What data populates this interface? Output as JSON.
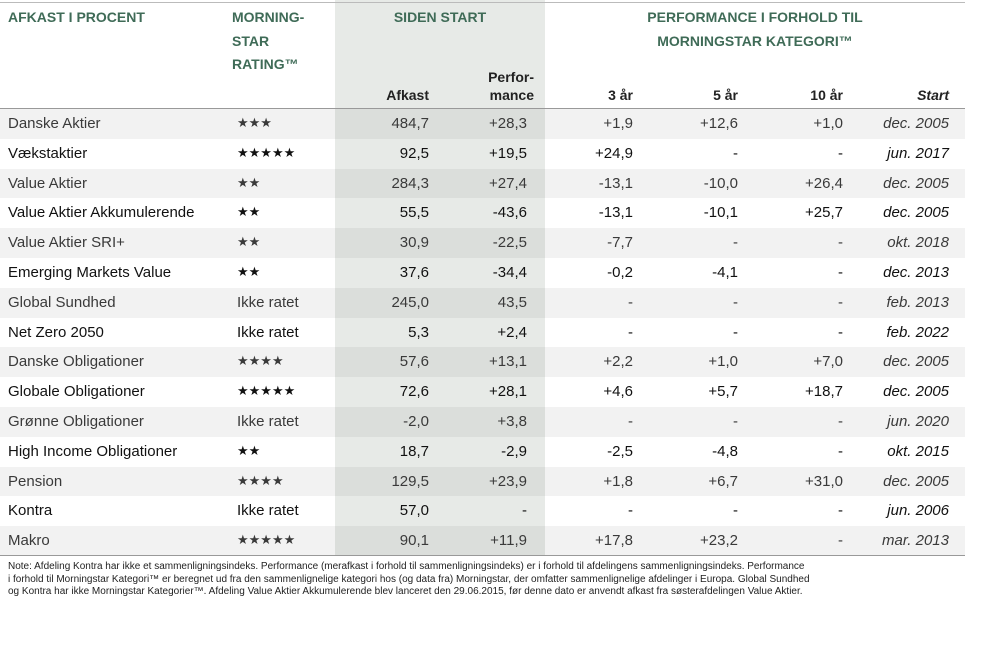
{
  "header": {
    "name": "AFKAST I PROCENT",
    "rating": [
      "MORNING-",
      "STAR",
      "RATING™"
    ],
    "since_start": "SIDEN START",
    "performance_group": [
      "PERFORMANCE I FORHOLD TIL",
      "MORNINGSTAR KATEGORI™"
    ],
    "afkast": "Afkast",
    "performance": [
      "Perfor-",
      "mance"
    ],
    "y3": "3 år",
    "y5": "5 år",
    "y10": "10 år",
    "start": "Start"
  },
  "table": {
    "rows": [
      [
        "Danske Aktier",
        "★★★",
        "484,7",
        "+28,3",
        "+1,9",
        "+12,6",
        "+1,0",
        "dec. 2005"
      ],
      [
        "Vækstaktier",
        "★★★★★",
        "92,5",
        "+19,5",
        "+24,9",
        "-",
        "-",
        "jun. 2017"
      ],
      [
        "Value Aktier",
        "★★",
        "284,3",
        "+27,4",
        "-13,1",
        "-10,0",
        "+26,4",
        "dec. 2005"
      ],
      [
        "Value Aktier Akkumulerende",
        "★★",
        "55,5",
        "-43,6",
        "-13,1",
        "-10,1",
        "+25,7",
        "dec. 2005"
      ],
      [
        "Value Aktier SRI+",
        "★★",
        "30,9",
        "-22,5",
        "-7,7",
        "-",
        "-",
        "okt. 2018"
      ],
      [
        "Emerging Markets Value",
        "★★",
        "37,6",
        "-34,4",
        "-0,2",
        "-4,1",
        "-",
        "dec. 2013"
      ],
      [
        "Global Sundhed",
        "Ikke ratet",
        "245,0",
        "43,5",
        "-",
        "-",
        "-",
        "feb. 2013"
      ],
      [
        "Net Zero 2050",
        "Ikke ratet",
        "5,3",
        "+2,4",
        "-",
        "-",
        "-",
        "feb. 2022"
      ],
      [
        "Danske Obligationer",
        "★★★★",
        "57,6",
        "+13,1",
        "+2,2",
        "+1,0",
        "+7,0",
        "dec. 2005"
      ],
      [
        "Globale Obligationer",
        "★★★★★",
        "72,6",
        "+28,1",
        "+4,6",
        "+5,7",
        "+18,7",
        "dec. 2005"
      ],
      [
        "Grønne Obligationer",
        "Ikke ratet",
        "-2,0",
        "+3,8",
        "-",
        "-",
        "-",
        "jun. 2020"
      ],
      [
        "High Income Obligationer",
        "★★",
        "18,7",
        "-2,9",
        "-2,5",
        "-4,8",
        "-",
        "okt. 2015"
      ],
      [
        "Pension",
        "★★★★",
        "129,5",
        "+23,9",
        "+1,8",
        "+6,7",
        "+31,0",
        "dec. 2005"
      ],
      [
        "Kontra",
        "Ikke ratet",
        "57,0",
        "-",
        "-",
        "-",
        "-",
        "jun. 2006"
      ],
      [
        "Makro",
        "★★★★★",
        "90,1",
        "+11,9",
        "+17,8",
        "+23,2",
        "-",
        "mar. 2013"
      ]
    ]
  },
  "note": [
    "Note: Afdeling Kontra har ikke et sammenligningsindeks. Performance (merafkast i forhold til sammenligningsindeks) er i forhold til afdelingens sammenligningsindeks. Performance",
    "i forhold til Morningstar Kategori™ er beregnet ud fra den sammenlignelige kategori hos (og data fra) Morningstar, der omfatter sammenlignelige afdelinger i Europa. Global Sundhed",
    "og Kontra har ikke Morningstar Kategorier™. Afdeling Value Aktier Akkumulerende blev lanceret den 29.06.2015, før denne dato er anvendt afkast fra søsterafdelingen Value Aktier."
  ]
}
